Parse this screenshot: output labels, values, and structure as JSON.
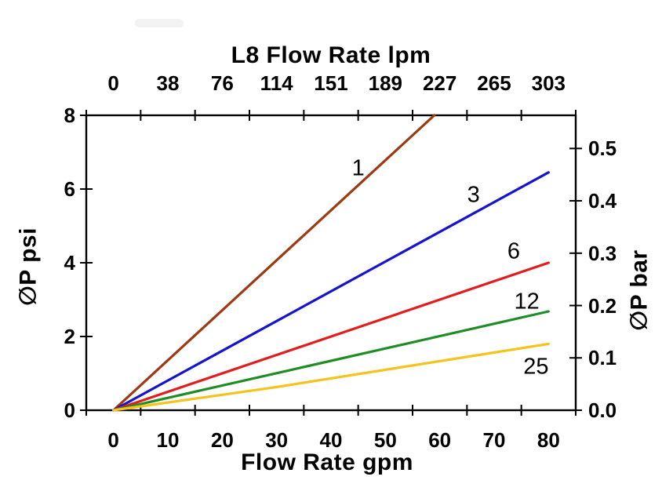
{
  "chart_data": {
    "type": "line",
    "title": "L8 Flow Rate lpm",
    "grid": false,
    "legend": "inline-line-labels",
    "axes": {
      "top": {
        "label": "L8 Flow Rate lpm",
        "ticks": [
          "0",
          "38",
          "76",
          "114",
          "151",
          "189",
          "227",
          "265",
          "303"
        ],
        "tick_values_gpm": [
          0,
          10,
          20,
          30,
          40,
          50,
          60,
          70,
          80
        ]
      },
      "bottom": {
        "label": "Flow Rate gpm",
        "ticks": [
          "0",
          "10",
          "20",
          "30",
          "40",
          "50",
          "60",
          "70",
          "80"
        ],
        "tick_values": [
          0,
          10,
          20,
          30,
          40,
          50,
          60,
          70,
          80
        ],
        "range": [
          0,
          80
        ]
      },
      "left": {
        "label": "∅P psi",
        "ticks": [
          "8",
          "6",
          "4",
          "2",
          "0"
        ],
        "tick_values": [
          8,
          6,
          4,
          2,
          0
        ],
        "range": [
          0,
          8
        ]
      },
      "right": {
        "label": "∅P bar",
        "ticks": [
          "0.5",
          "0.4",
          "0.3",
          "0.2",
          "0.1",
          "0.0"
        ],
        "tick_values": [
          0.5,
          0.4,
          0.3,
          0.2,
          0.1,
          0.0
        ],
        "psi_per_bar": 14.2
      }
    },
    "series": [
      {
        "name": "1",
        "color": "#9C3A13",
        "points": [
          [
            0,
            0
          ],
          [
            59,
            8
          ]
        ],
        "label": {
          "text": "1",
          "x": 45.0,
          "y": 6.55
        }
      },
      {
        "name": "3",
        "color": "#1515CC",
        "points": [
          [
            0,
            0
          ],
          [
            80,
            6.45
          ]
        ],
        "label": {
          "text": "3",
          "x": 66.2,
          "y": 5.83
        }
      },
      {
        "name": "6",
        "color": "#E21D1D",
        "points": [
          [
            0,
            0
          ],
          [
            80,
            4.0
          ]
        ],
        "label": {
          "text": "6",
          "x": 73.6,
          "y": 4.3
        }
      },
      {
        "name": "12",
        "color": "#1F8C26",
        "points": [
          [
            0,
            0
          ],
          [
            80,
            2.68
          ]
        ],
        "label": {
          "text": "12",
          "x": 76.0,
          "y": 2.93
        }
      },
      {
        "name": "25",
        "color": "#F5C41C",
        "points": [
          [
            0,
            0
          ],
          [
            30,
            0.63
          ],
          [
            80,
            1.8
          ]
        ],
        "label": {
          "text": "25",
          "x": 77.7,
          "y": 1.17
        }
      }
    ],
    "colors": {
      "frame": "#000000",
      "text": "#000000"
    }
  }
}
